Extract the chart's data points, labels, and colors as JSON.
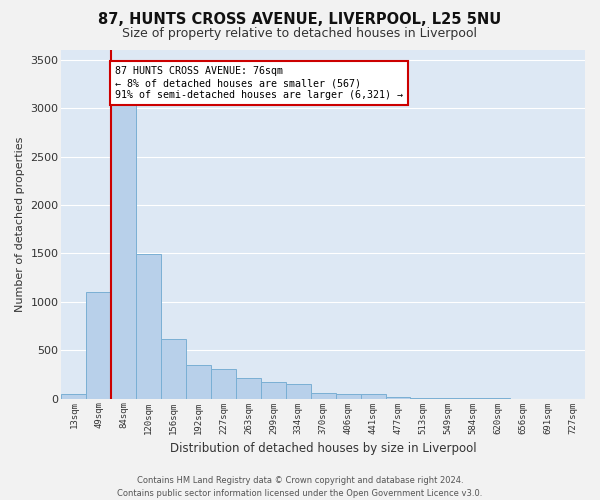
{
  "title": "87, HUNTS CROSS AVENUE, LIVERPOOL, L25 5NU",
  "subtitle": "Size of property relative to detached houses in Liverpool",
  "xlabel": "Distribution of detached houses by size in Liverpool",
  "ylabel": "Number of detached properties",
  "bar_color": "#b8d0ea",
  "bar_edge_color": "#7aafd4",
  "bg_color": "#dde8f4",
  "grid_color": "#ffffff",
  "vline_color": "#cc0000",
  "ann_box_color": "#cc0000",
  "annotation_text_line1": "87 HUNTS CROSS AVENUE: 76sqm",
  "annotation_text_line2": "← 8% of detached houses are smaller (567)",
  "annotation_text_line3": "91% of semi-detached houses are larger (6,321) →",
  "categories": [
    "13sqm",
    "49sqm",
    "84sqm",
    "120sqm",
    "156sqm",
    "192sqm",
    "227sqm",
    "263sqm",
    "299sqm",
    "334sqm",
    "370sqm",
    "406sqm",
    "441sqm",
    "477sqm",
    "513sqm",
    "549sqm",
    "584sqm",
    "620sqm",
    "656sqm",
    "691sqm",
    "727sqm"
  ],
  "values": [
    50,
    1100,
    3300,
    1490,
    620,
    350,
    310,
    210,
    175,
    155,
    55,
    50,
    45,
    12,
    5,
    4,
    3,
    2,
    1,
    1,
    1
  ],
  "ylim": [
    0,
    3600
  ],
  "yticks": [
    0,
    500,
    1000,
    1500,
    2000,
    2500,
    3000,
    3500
  ],
  "vline_x": 1.5,
  "fig_bg": "#f2f2f2",
  "footer_line1": "Contains HM Land Registry data © Crown copyright and database right 2024.",
  "footer_line2": "Contains public sector information licensed under the Open Government Licence v3.0."
}
